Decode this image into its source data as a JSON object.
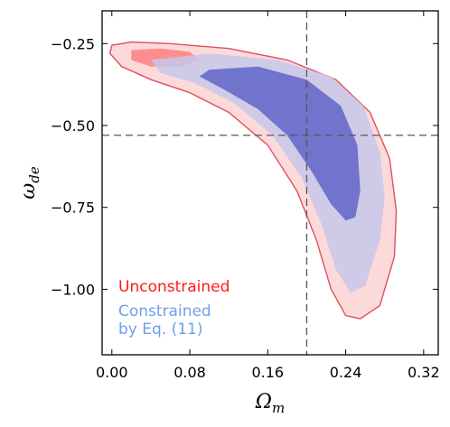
{
  "chart_data": {
    "type": "contour",
    "xlabel": {
      "main": "Ω",
      "sub": "m"
    },
    "ylabel": {
      "main": "ω",
      "sub": "de"
    },
    "xlim": [
      -0.01,
      0.335
    ],
    "ylim": [
      -1.2,
      -0.15
    ],
    "xticks": [
      0.0,
      0.08,
      0.16,
      0.24,
      0.32
    ],
    "xtick_labels": [
      "0.00",
      "0.08",
      "0.16",
      "0.24",
      "0.32"
    ],
    "yticks": [
      -0.25,
      -0.5,
      -0.75,
      -1.0
    ],
    "ytick_labels": [
      "−0.25",
      "−0.50",
      "−0.75",
      "−1.00"
    ],
    "reference_lines": {
      "x": 0.2,
      "y": -0.53,
      "style": "dashed",
      "color": "#555555"
    },
    "legend": [
      {
        "label": "Unconstrained",
        "color": "#ff1a1a"
      },
      {
        "label": "Constrained\n by Eq. (11)",
        "color": "#6f9fe8"
      }
    ],
    "series": [
      {
        "name": "Unconstrained",
        "levels": [
          "2σ",
          "1σ"
        ],
        "colors": {
          "outer": "#fcdada",
          "inner": "#ff8d8d",
          "edge": "#e05060"
        },
        "outer": [
          [
            0.0,
            -0.255
          ],
          [
            0.02,
            -0.245
          ],
          [
            0.06,
            -0.25
          ],
          [
            0.12,
            -0.265
          ],
          [
            0.18,
            -0.3
          ],
          [
            0.23,
            -0.36
          ],
          [
            0.265,
            -0.46
          ],
          [
            0.285,
            -0.6
          ],
          [
            0.292,
            -0.76
          ],
          [
            0.29,
            -0.9
          ],
          [
            0.275,
            -1.05
          ],
          [
            0.255,
            -1.09
          ],
          [
            0.24,
            -1.08
          ],
          [
            0.225,
            -1.0
          ],
          [
            0.21,
            -0.85
          ],
          [
            0.19,
            -0.7
          ],
          [
            0.16,
            -0.56
          ],
          [
            0.12,
            -0.46
          ],
          [
            0.08,
            -0.4
          ],
          [
            0.04,
            -0.36
          ],
          [
            0.01,
            -0.32
          ],
          [
            -0.002,
            -0.28
          ]
        ],
        "inner": [
          [
            0.02,
            -0.27
          ],
          [
            0.05,
            -0.265
          ],
          [
            0.08,
            -0.275
          ],
          [
            0.09,
            -0.3
          ],
          [
            0.07,
            -0.32
          ],
          [
            0.04,
            -0.32
          ],
          [
            0.02,
            -0.3
          ]
        ]
      },
      {
        "name": "Constrained\n by Eq. (11)",
        "levels": [
          "2σ",
          "1σ"
        ],
        "colors": {
          "outer": "#c5c7ea",
          "inner": "#6a6fca"
        },
        "outer": [
          [
            0.04,
            -0.3
          ],
          [
            0.1,
            -0.28
          ],
          [
            0.17,
            -0.3
          ],
          [
            0.225,
            -0.35
          ],
          [
            0.258,
            -0.44
          ],
          [
            0.275,
            -0.58
          ],
          [
            0.28,
            -0.72
          ],
          [
            0.275,
            -0.85
          ],
          [
            0.26,
            -0.99
          ],
          [
            0.245,
            -1.01
          ],
          [
            0.23,
            -0.94
          ],
          [
            0.215,
            -0.8
          ],
          [
            0.195,
            -0.66
          ],
          [
            0.165,
            -0.53
          ],
          [
            0.125,
            -0.43
          ],
          [
            0.085,
            -0.37
          ],
          [
            0.05,
            -0.34
          ]
        ],
        "inner": [
          [
            0.1,
            -0.33
          ],
          [
            0.15,
            -0.32
          ],
          [
            0.2,
            -0.36
          ],
          [
            0.235,
            -0.44
          ],
          [
            0.252,
            -0.56
          ],
          [
            0.255,
            -0.7
          ],
          [
            0.25,
            -0.78
          ],
          [
            0.24,
            -0.79
          ],
          [
            0.225,
            -0.74
          ],
          [
            0.205,
            -0.64
          ],
          [
            0.18,
            -0.53
          ],
          [
            0.15,
            -0.45
          ],
          [
            0.115,
            -0.39
          ],
          [
            0.09,
            -0.35
          ]
        ]
      }
    ]
  }
}
